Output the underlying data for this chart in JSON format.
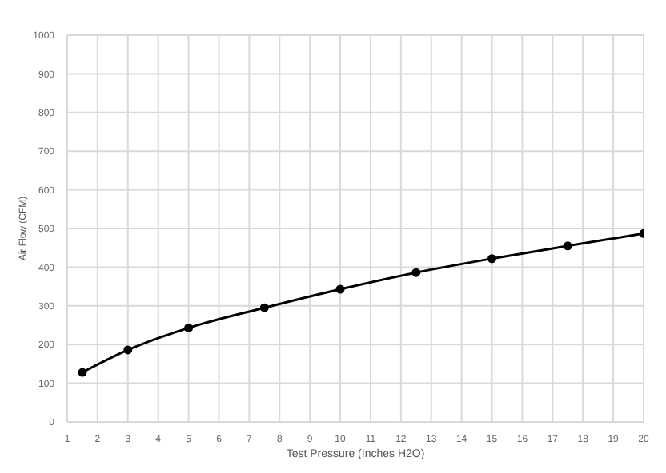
{
  "chart_data": {
    "type": "line",
    "xlabel": "Test Pressure (Inches H2O)",
    "ylabel": "Air Flow (CFM)",
    "x": [
      1.5,
      3,
      5,
      7.5,
      10,
      12.5,
      15,
      17.5,
      20
    ],
    "series": [
      {
        "color": "#000000",
        "values": [
          128,
          186,
          243,
          295,
          343,
          386,
          422,
          455,
          487
        ]
      }
    ],
    "xlim": [
      1,
      20
    ],
    "xticks": [
      1,
      2,
      3,
      4,
      5,
      6,
      7,
      8,
      9,
      10,
      11,
      12,
      13,
      14,
      15,
      16,
      17,
      18,
      19,
      20
    ],
    "ylim": [
      0,
      1000
    ],
    "yticks": [
      0,
      100,
      200,
      300,
      400,
      500,
      600,
      700,
      800,
      900,
      1000
    ],
    "grid": true,
    "marker": "circle",
    "line_style": "solid",
    "legend": false
  }
}
